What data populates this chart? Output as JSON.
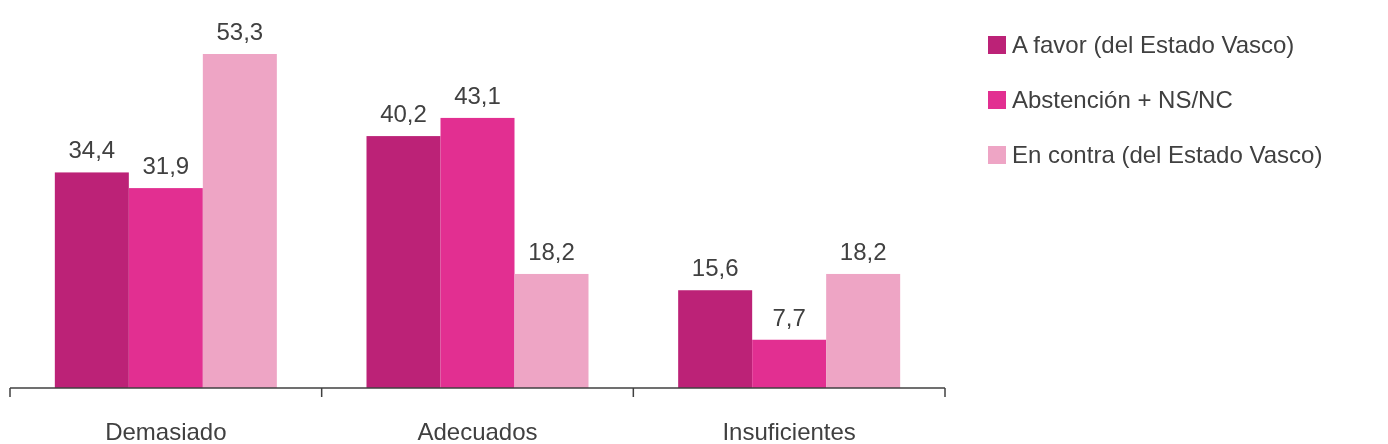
{
  "chart_data": {
    "type": "bar",
    "categories": [
      "Demasiado",
      "Adecuados",
      "Insuficientes"
    ],
    "series": [
      {
        "name": "A favor (del Estado Vasco)",
        "color": "#bc2277",
        "values": [
          34.4,
          40.2,
          15.6
        ],
        "value_labels": [
          "34,4",
          "40,2",
          "15,6"
        ]
      },
      {
        "name": "Abstención + NS/NC",
        "color": "#e22f91",
        "values": [
          31.9,
          43.1,
          7.7
        ],
        "value_labels": [
          "31,9",
          "43,1",
          "7,7"
        ]
      },
      {
        "name": "En contra (del Estado Vasco)",
        "color": "#eea5c5",
        "values": [
          53.3,
          18.2,
          18.2
        ],
        "value_labels": [
          "53,3",
          "18,2",
          "18,2"
        ]
      }
    ],
    "legend": "right"
  }
}
